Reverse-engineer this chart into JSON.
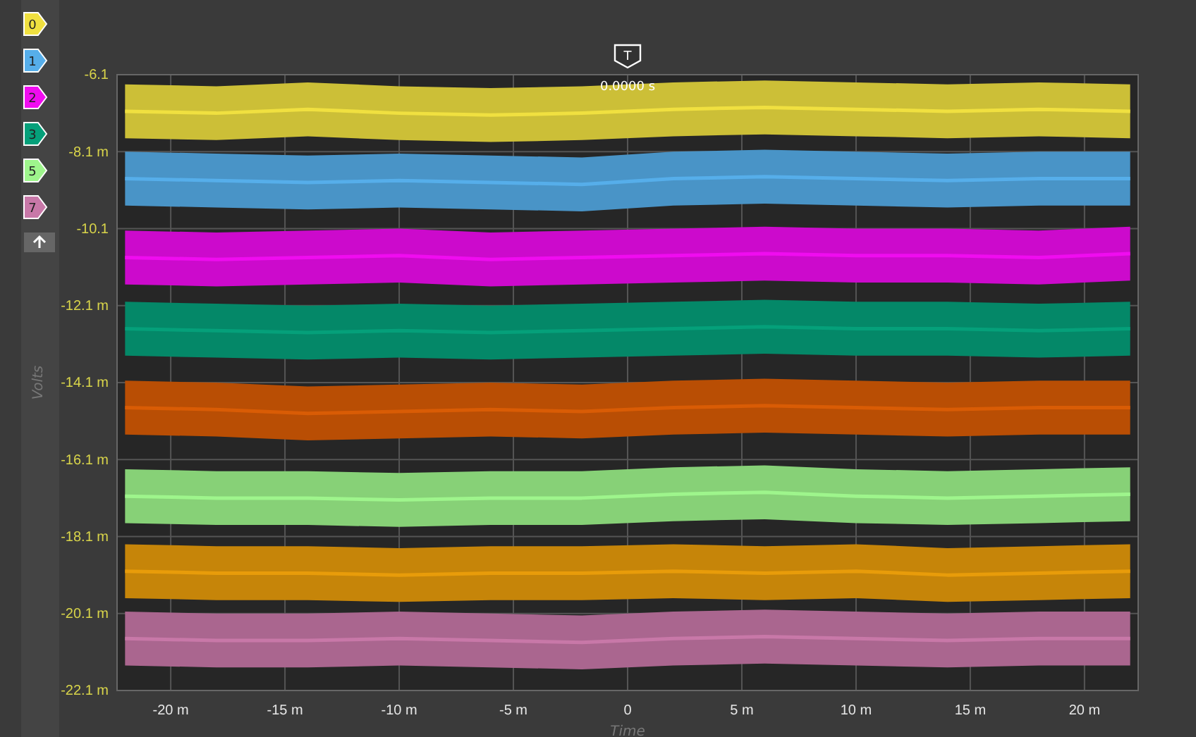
{
  "chart_data": {
    "type": "line",
    "xlabel": "Time",
    "ylabel": "Volts",
    "x": [
      -22,
      -18,
      -14,
      -10,
      -6,
      -2,
      2,
      6,
      10,
      14,
      18,
      22
    ],
    "xlim": [
      -22.35,
      22.35
    ],
    "xticks": [
      {
        "value": -20,
        "label": "-20 m"
      },
      {
        "value": -15,
        "label": "-15 m"
      },
      {
        "value": -10,
        "label": "-10 m"
      },
      {
        "value": -5,
        "label": "-5 m"
      },
      0,
      {
        "value": 5,
        "label": "5 m"
      },
      {
        "value": 10,
        "label": "10 m"
      },
      {
        "value": 15,
        "label": "15 m"
      },
      {
        "value": 20,
        "label": "20 m"
      }
    ],
    "ylim": [
      -22.1,
      -6.1
    ],
    "yticks": [
      {
        "value": -6.1,
        "label": "-6.1"
      },
      {
        "value": -8.1,
        "label": "-8.1 m"
      },
      {
        "value": -10.1,
        "label": "-10.1"
      },
      {
        "value": -12.1,
        "label": "-12.1 m"
      },
      {
        "value": -14.1,
        "label": "-14.1 m"
      },
      {
        "value": -16.1,
        "label": "-16.1 m"
      },
      {
        "value": -18.1,
        "label": "-18.1 m"
      },
      {
        "value": -20.1,
        "label": "-20.1 m"
      },
      {
        "value": -22.1,
        "label": "-22.1 m"
      }
    ],
    "grid": true,
    "legend": "left",
    "marker": "none",
    "line_style": "solid",
    "annotations": [
      "T",
      "0.0000 s"
    ],
    "series": [
      {
        "name": "0",
        "color": "#f0e040",
        "values": [
          -7.05,
          -7.1,
          -7.0,
          -7.1,
          -7.15,
          -7.1,
          -7.0,
          -6.95,
          -7.0,
          -7.05,
          -7.0,
          -7.05
        ],
        "upper": [
          -6.35,
          -6.4,
          -6.3,
          -6.4,
          -6.45,
          -6.4,
          -6.3,
          -6.25,
          -6.3,
          -6.35,
          -6.3,
          -6.35
        ],
        "lower": [
          -7.75,
          -7.8,
          -7.7,
          -7.8,
          -7.85,
          -7.8,
          -7.7,
          -7.65,
          -7.7,
          -7.75,
          -7.7,
          -7.75
        ]
      },
      {
        "name": "1",
        "color": "#56aeea",
        "values": [
          -8.8,
          -8.85,
          -8.9,
          -8.85,
          -8.9,
          -8.95,
          -8.8,
          -8.75,
          -8.8,
          -8.85,
          -8.8,
          -8.8
        ],
        "upper": [
          -8.1,
          -8.15,
          -8.2,
          -8.15,
          -8.2,
          -8.25,
          -8.1,
          -8.05,
          -8.1,
          -8.15,
          -8.1,
          -8.1
        ],
        "lower": [
          -9.5,
          -9.55,
          -9.6,
          -9.55,
          -9.6,
          -9.65,
          -9.5,
          -9.45,
          -9.5,
          -9.55,
          -9.5,
          -9.5
        ]
      },
      {
        "name": "2",
        "color": "#f00cf0",
        "values": [
          -10.85,
          -10.9,
          -10.85,
          -10.8,
          -10.9,
          -10.85,
          -10.8,
          -10.75,
          -10.8,
          -10.8,
          -10.85,
          -10.75
        ],
        "upper": [
          -10.15,
          -10.2,
          -10.15,
          -10.1,
          -10.2,
          -10.15,
          -10.1,
          -10.05,
          -10.1,
          -10.1,
          -10.15,
          -10.05
        ],
        "lower": [
          -11.55,
          -11.6,
          -11.55,
          -11.5,
          -11.6,
          -11.55,
          -11.5,
          -11.45,
          -11.5,
          -11.5,
          -11.55,
          -11.45
        ]
      },
      {
        "name": "3",
        "color": "#05a07a",
        "values": [
          -12.7,
          -12.75,
          -12.8,
          -12.75,
          -12.8,
          -12.75,
          -12.7,
          -12.65,
          -12.7,
          -12.7,
          -12.75,
          -12.7
        ],
        "upper": [
          -12.0,
          -12.05,
          -12.1,
          -12.05,
          -12.1,
          -12.05,
          -12.0,
          -11.95,
          -12.0,
          -12.0,
          -12.05,
          -12.0
        ],
        "lower": [
          -13.4,
          -13.45,
          -13.5,
          -13.45,
          -13.5,
          -13.45,
          -13.4,
          -13.35,
          -13.4,
          -13.4,
          -13.45,
          -13.4
        ]
      },
      {
        "color": "#d95c05",
        "values": [
          -14.75,
          -14.8,
          -14.9,
          -14.85,
          -14.8,
          -14.85,
          -14.75,
          -14.7,
          -14.75,
          -14.8,
          -14.75,
          -14.75
        ],
        "upper": [
          -14.05,
          -14.1,
          -14.2,
          -14.15,
          -14.1,
          -14.15,
          -14.05,
          -14.0,
          -14.05,
          -14.1,
          -14.05,
          -14.05
        ],
        "lower": [
          -15.45,
          -15.5,
          -15.6,
          -15.55,
          -15.5,
          -15.55,
          -15.45,
          -15.4,
          -15.45,
          -15.5,
          -15.45,
          -15.45
        ]
      },
      {
        "name": "5",
        "color": "#9ef58c",
        "values": [
          -17.05,
          -17.1,
          -17.1,
          -17.15,
          -17.1,
          -17.1,
          -17.0,
          -16.95,
          -17.05,
          -17.1,
          -17.05,
          -17.0
        ],
        "upper": [
          -16.35,
          -16.4,
          -16.4,
          -16.45,
          -16.4,
          -16.4,
          -16.3,
          -16.25,
          -16.35,
          -16.4,
          -16.35,
          -16.3
        ],
        "lower": [
          -17.75,
          -17.8,
          -17.8,
          -17.85,
          -17.8,
          -17.8,
          -17.7,
          -17.65,
          -17.75,
          -17.8,
          -17.75,
          -17.7
        ]
      },
      {
        "color": "#e89c0a",
        "values": [
          -19.0,
          -19.05,
          -19.05,
          -19.1,
          -19.05,
          -19.05,
          -19.0,
          -19.05,
          -19.0,
          -19.1,
          -19.05,
          -19.0
        ],
        "upper": [
          -18.3,
          -18.35,
          -18.35,
          -18.4,
          -18.35,
          -18.35,
          -18.3,
          -18.35,
          -18.3,
          -18.4,
          -18.35,
          -18.3
        ],
        "lower": [
          -19.7,
          -19.75,
          -19.75,
          -19.8,
          -19.75,
          -19.75,
          -19.7,
          -19.75,
          -19.7,
          -19.8,
          -19.75,
          -19.7
        ]
      },
      {
        "name": "7",
        "color": "#c878a8",
        "values": [
          -20.75,
          -20.8,
          -20.8,
          -20.75,
          -20.8,
          -20.85,
          -20.75,
          -20.7,
          -20.75,
          -20.8,
          -20.75,
          -20.75
        ],
        "upper": [
          -20.05,
          -20.1,
          -20.1,
          -20.05,
          -20.1,
          -20.15,
          -20.05,
          -20.0,
          -20.05,
          -20.1,
          -20.05,
          -20.05
        ],
        "lower": [
          -21.45,
          -21.5,
          -21.5,
          -21.45,
          -21.5,
          -21.55,
          -21.45,
          -21.4,
          -21.45,
          -21.5,
          -21.45,
          -21.45
        ]
      }
    ]
  }
}
